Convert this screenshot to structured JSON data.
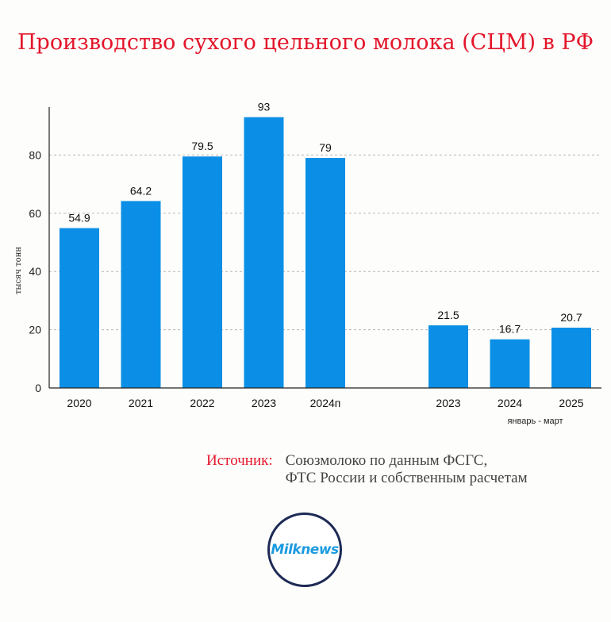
{
  "title": "Производство сухого цельного молока (СЦМ) в РФ",
  "source": {
    "label": "Источник:",
    "line1": "Союзмолоко по данным ФСГС,",
    "line2": "ФТС России и собственным расчетам"
  },
  "logo": {
    "text": "Milknews"
  },
  "colors": {
    "bar": "#0b8fe6",
    "title": "#e3162b",
    "grid": "#b5b5b5"
  },
  "chart_data": {
    "type": "bar",
    "title": "Производство сухого цельного молока (СЦМ) в РФ",
    "ylabel": "тысяч тонн",
    "xlabel": "",
    "ylim": [
      0,
      97
    ],
    "yticks": [
      0,
      20,
      40,
      60,
      80
    ],
    "grid": "horizontal dashed",
    "groups": [
      {
        "name": "",
        "categories": [
          "2020",
          "2021",
          "2022",
          "2023",
          "2024п"
        ],
        "values": [
          54.9,
          64.2,
          79.5,
          93,
          79
        ],
        "labels": [
          "54.9",
          "64.2",
          "79.5",
          "93",
          "79"
        ]
      },
      {
        "name": "январь - март",
        "categories": [
          "2023",
          "2024",
          "2025"
        ],
        "values": [
          21.5,
          16.7,
          20.7
        ],
        "labels": [
          "21.5",
          "16.7",
          "20.7"
        ]
      }
    ]
  }
}
